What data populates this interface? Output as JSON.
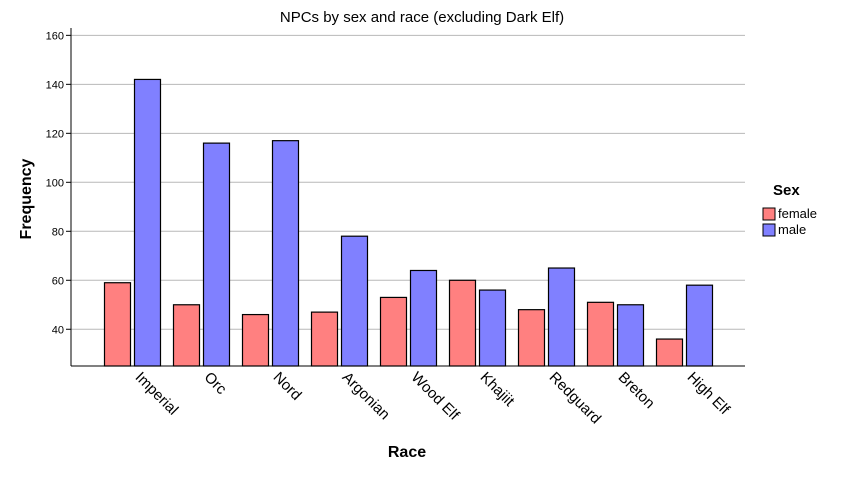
{
  "chart_data": {
    "type": "bar",
    "title": "NPCs by sex and race (excluding Dark Elf)",
    "xlabel": "Race",
    "ylabel": "Frequency",
    "categories": [
      "Imperial",
      "Orc",
      "Nord",
      "Argonian",
      "Wood Elf",
      "Khajiit",
      "Redguard",
      "Breton",
      "High Elf"
    ],
    "series": [
      {
        "name": "female",
        "color": "#ff8080",
        "values": [
          59,
          50,
          46,
          47,
          53,
          60,
          48,
          51,
          36
        ]
      },
      {
        "name": "male",
        "color": "#8080ff",
        "values": [
          142,
          116,
          117,
          78,
          64,
          56,
          65,
          50,
          58
        ]
      }
    ],
    "ylim": [
      25,
      163
    ],
    "yticks": [
      40,
      60,
      80,
      100,
      120,
      140,
      160
    ],
    "grid": true,
    "legend": {
      "title": "Sex",
      "position": "right"
    }
  }
}
